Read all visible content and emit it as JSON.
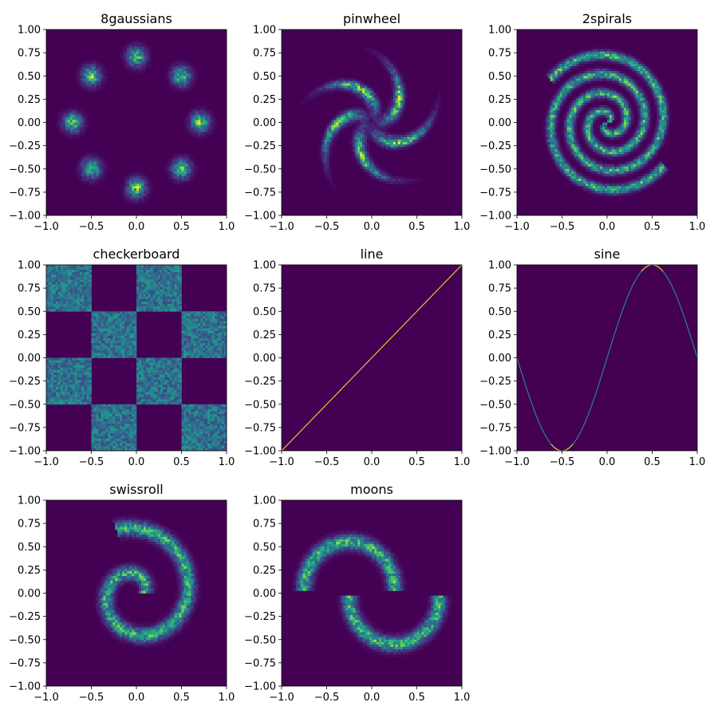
{
  "figure": {
    "background": "#ffffff",
    "colormap_low": "#440154",
    "colormap": [
      "#440154",
      "#482878",
      "#3e4a89",
      "#31688e",
      "#26828e",
      "#1f9e89",
      "#35b779",
      "#6ece58",
      "#b5de2b",
      "#fde725"
    ]
  },
  "chart_data": [
    {
      "type": "heatmap",
      "name": "8gaussians",
      "title": "8gaussians",
      "xlim": [
        -1.0,
        1.0
      ],
      "ylim": [
        -1.0,
        1.0
      ],
      "xticks": [
        -1.0,
        -0.5,
        0.0,
        0.5,
        1.0
      ],
      "xtick_labels": [
        "−1.0",
        "−0.5",
        "0.0",
        "0.5",
        "1.0"
      ],
      "yticks": [
        -1.0,
        -0.75,
        -0.5,
        -0.25,
        0.0,
        0.25,
        0.5,
        0.75,
        1.0
      ],
      "ytick_labels": [
        "−1.00",
        "−0.75",
        "−0.50",
        "−0.25",
        "0.00",
        "0.25",
        "0.50",
        "0.75",
        "1.00"
      ],
      "density": {
        "kind": "gaussians",
        "centers": [
          [
            0.707,
            0
          ],
          [
            -0.707,
            0
          ],
          [
            0,
            0.707
          ],
          [
            0,
            -0.707
          ],
          [
            0.5,
            0.5
          ],
          [
            0.5,
            -0.5
          ],
          [
            -0.5,
            0.5
          ],
          [
            -0.5,
            -0.5
          ]
        ],
        "sigma": 0.065,
        "peak": 0.72
      }
    },
    {
      "type": "heatmap",
      "name": "pinwheel",
      "title": "pinwheel",
      "xlim": [
        -1.0,
        1.0
      ],
      "ylim": [
        -1.0,
        1.0
      ],
      "xticks": [
        -1.0,
        -0.5,
        0.0,
        0.5,
        1.0
      ],
      "xtick_labels": [
        "−1.0",
        "−0.5",
        "0.0",
        "0.5",
        "1.0"
      ],
      "yticks": [
        -1.0,
        -0.75,
        -0.5,
        -0.25,
        0.0,
        0.25,
        0.5,
        0.75,
        1.0
      ],
      "ytick_labels": [
        "−1.00",
        "−0.75",
        "−0.50",
        "−0.25",
        "0.00",
        "0.25",
        "0.50",
        "0.75",
        "1.00"
      ],
      "density": {
        "kind": "pinwheel",
        "arms": 5,
        "radial_center": 0.38,
        "radial_sigma": 0.16,
        "tangential_sigma": 0.045,
        "rate": 2.3,
        "peak": 0.78
      }
    },
    {
      "type": "heatmap",
      "name": "2spirals",
      "title": "2spirals",
      "xlim": [
        -1.0,
        1.0
      ],
      "ylim": [
        -1.0,
        1.0
      ],
      "xticks": [
        -1.0,
        -0.5,
        0.0,
        0.5,
        1.0
      ],
      "xtick_labels": [
        "−1.0",
        "−0.5",
        "0.0",
        "0.5",
        "1.0"
      ],
      "yticks": [
        -1.0,
        -0.75,
        -0.5,
        -0.25,
        0.0,
        0.25,
        0.5,
        0.75,
        1.0
      ],
      "ytick_labels": [
        "−1.00",
        "−0.75",
        "−0.50",
        "−0.25",
        "0.00",
        "0.25",
        "0.50",
        "0.75",
        "1.00"
      ],
      "density": {
        "kind": "spirals",
        "scale": 0.7,
        "max_turn": 1.9,
        "sigma": 0.03,
        "peak": 0.62
      }
    },
    {
      "type": "heatmap",
      "name": "checkerboard",
      "title": "checkerboard",
      "xlim": [
        -1.0,
        1.0
      ],
      "ylim": [
        -1.0,
        1.0
      ],
      "xticks": [
        -1.0,
        -0.5,
        0.0,
        0.5,
        1.0
      ],
      "xtick_labels": [
        "−1.0",
        "−0.5",
        "0.0",
        "0.5",
        "1.0"
      ],
      "yticks": [
        -1.0,
        -0.75,
        -0.5,
        -0.25,
        0.0,
        0.25,
        0.5,
        0.75,
        1.0
      ],
      "ytick_labels": [
        "−1.00",
        "−0.75",
        "−0.50",
        "−0.25",
        "0.00",
        "0.25",
        "0.50",
        "0.75",
        "1.00"
      ],
      "density": {
        "kind": "checkerboard",
        "cell": 0.5,
        "peak": 0.38
      }
    },
    {
      "type": "heatmap",
      "name": "line",
      "title": "line",
      "xlim": [
        -1.0,
        1.0
      ],
      "ylim": [
        -1.0,
        1.0
      ],
      "xticks": [
        -1.0,
        -0.5,
        0.0,
        0.5,
        1.0
      ],
      "xtick_labels": [
        "−1.0",
        "−0.5",
        "0.0",
        "0.5",
        "1.0"
      ],
      "yticks": [
        -1.0,
        -0.75,
        -0.5,
        -0.25,
        0.0,
        0.25,
        0.5,
        0.75,
        1.0
      ],
      "ytick_labels": [
        "−1.00",
        "−0.75",
        "−0.50",
        "−0.25",
        "0.00",
        "0.25",
        "0.50",
        "0.75",
        "1.00"
      ],
      "density": {
        "kind": "curve",
        "function": "y = x",
        "width": 0.006,
        "peak": 1.0
      }
    },
    {
      "type": "heatmap",
      "name": "sine",
      "title": "sine",
      "xlim": [
        -1.0,
        1.0
      ],
      "ylim": [
        -1.0,
        1.0
      ],
      "xticks": [
        -1.0,
        -0.5,
        0.0,
        0.5,
        1.0
      ],
      "xtick_labels": [
        "−1.0",
        "−0.5",
        "0.0",
        "0.5",
        "1.0"
      ],
      "yticks": [
        -1.0,
        -0.75,
        -0.5,
        -0.25,
        0.0,
        0.25,
        0.5,
        0.75,
        1.0
      ],
      "ytick_labels": [
        "−1.00",
        "−0.75",
        "−0.50",
        "−0.25",
        "0.00",
        "0.25",
        "0.50",
        "0.75",
        "1.00"
      ],
      "density": {
        "kind": "curve",
        "function": "y = sin(pi x)",
        "width": 0.006,
        "peak": 0.55,
        "extrema_peak": 1.0
      }
    },
    {
      "type": "heatmap",
      "name": "swissroll",
      "title": "swissroll",
      "xlim": [
        -1.0,
        1.0
      ],
      "ylim": [
        -1.0,
        1.0
      ],
      "xticks": [
        -1.0,
        -0.5,
        0.0,
        0.5,
        1.0
      ],
      "xtick_labels": [
        "−1.0",
        "−0.5",
        "0.0",
        "0.5",
        "1.0"
      ],
      "yticks": [
        -1.0,
        -0.75,
        -0.5,
        -0.25,
        0.0,
        0.25,
        0.5,
        0.75,
        1.0
      ],
      "ytick_labels": [
        "−1.00",
        "−0.75",
        "−0.50",
        "−0.25",
        "0.00",
        "0.25",
        "0.50",
        "0.75",
        "1.00"
      ],
      "density": {
        "kind": "swissroll",
        "r_start": 0.08,
        "r_end": 0.72,
        "turns": 1.3,
        "sigma": 0.05,
        "peak": 0.6
      }
    },
    {
      "type": "heatmap",
      "name": "moons",
      "title": "moons",
      "xlim": [
        -1.0,
        1.0
      ],
      "ylim": [
        -1.0,
        1.0
      ],
      "xticks": [
        -1.0,
        -0.5,
        0.0,
        0.5,
        1.0
      ],
      "xtick_labels": [
        "−1.0",
        "−0.5",
        "0.0",
        "0.5",
        "1.0"
      ],
      "yticks": [
        -1.0,
        -0.75,
        -0.5,
        -0.25,
        0.0,
        0.25,
        0.5,
        0.75,
        1.0
      ],
      "ytick_labels": [
        "−1.00",
        "−0.75",
        "−0.50",
        "−0.25",
        "0.00",
        "0.25",
        "0.50",
        "0.75",
        "1.00"
      ],
      "density": {
        "kind": "moons",
        "moons": [
          {
            "center": [
              -0.25,
              0.05
            ],
            "radius": 0.5,
            "upper": true
          },
          {
            "center": [
              0.25,
              -0.05
            ],
            "radius": 0.5,
            "upper": false
          }
        ],
        "sigma": 0.05,
        "peak": 0.62
      }
    }
  ]
}
